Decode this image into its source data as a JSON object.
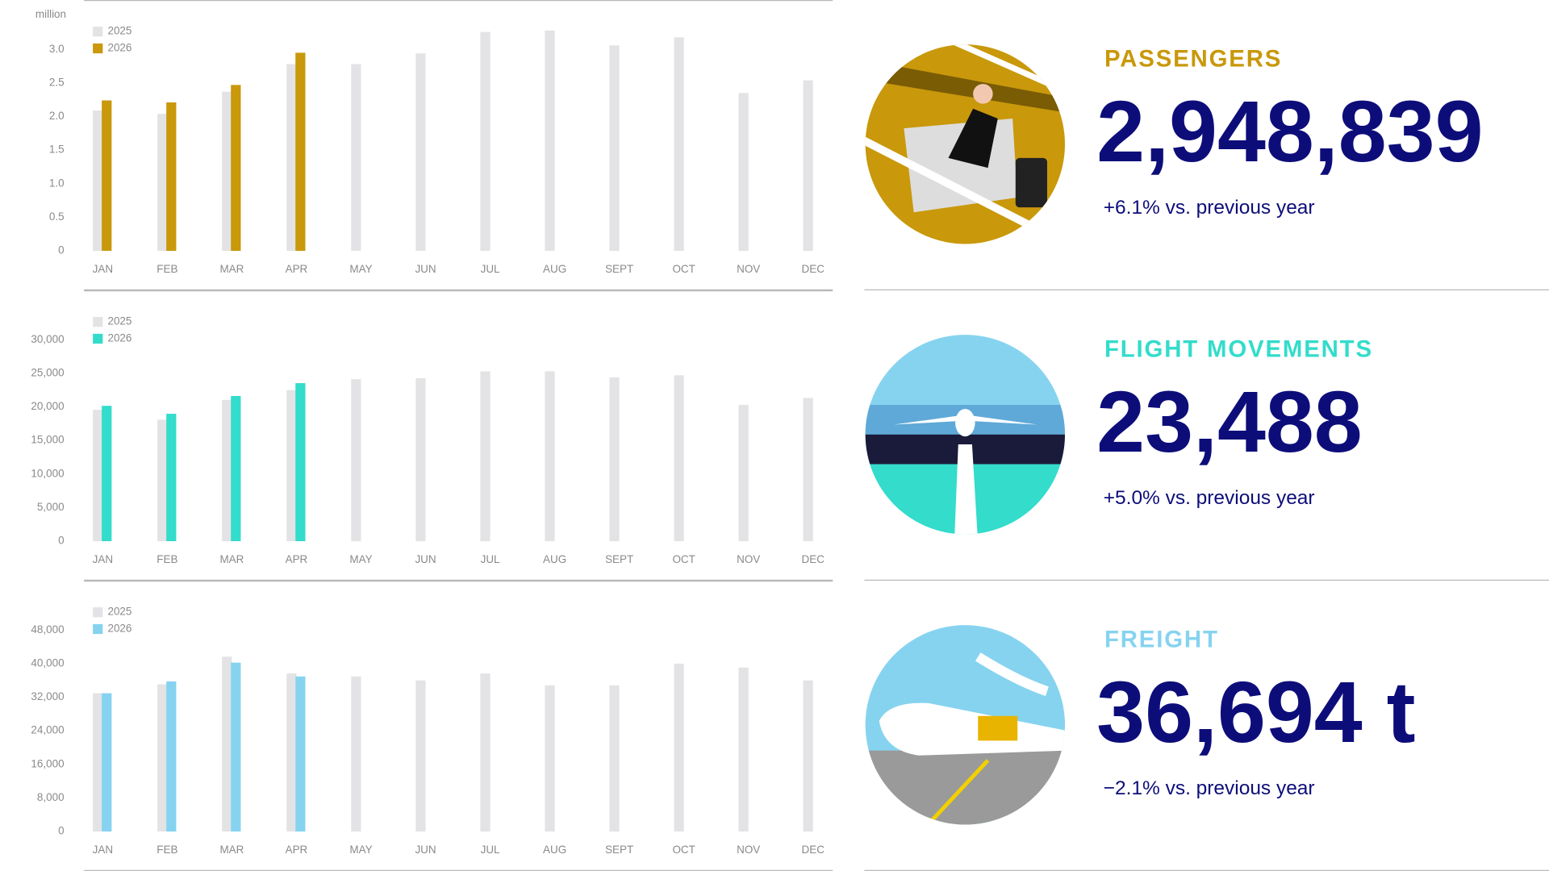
{
  "chart_data": [
    {
      "type": "bar",
      "ylabel": "million",
      "categories": [
        "JAN",
        "FEB",
        "MAR",
        "APR",
        "MAY",
        "JUN",
        "JUL",
        "AUG",
        "SEPT",
        "OCT",
        "NOV",
        "DEC"
      ],
      "series": [
        {
          "name": "2025",
          "color": "#e3e3e5",
          "values": [
            2.09,
            2.04,
            2.37,
            2.78,
            2.78,
            2.94,
            3.26,
            3.28,
            3.06,
            3.18,
            2.35,
            2.54
          ]
        },
        {
          "name": "2026",
          "color": "#c9980b",
          "values": [
            2.24,
            2.21,
            2.47,
            2.95,
            null,
            null,
            null,
            null,
            null,
            null,
            null,
            null
          ]
        }
      ],
      "ylim": [
        0,
        3.5
      ],
      "yticks": [
        0,
        0.5,
        {
          "value": 1,
          "label": "1.0"
        },
        1.5,
        {
          "value": 2,
          "label": "2.0"
        },
        2.5,
        {
          "value": 3,
          "label": "3.0"
        }
      ]
    },
    {
      "type": "bar",
      "categories": [
        "JAN",
        "FEB",
        "MAR",
        "APR",
        "MAY",
        "JUN",
        "JUL",
        "AUG",
        "SEPT",
        "OCT",
        "NOV",
        "DEC"
      ],
      "series": [
        {
          "name": "2025",
          "color": "#e3e3e5",
          "values": [
            19560,
            18090,
            21030,
            22500,
            24120,
            24260,
            25290,
            25290,
            24410,
            24710,
            20290,
            21320
          ]
        },
        {
          "name": "2026",
          "color": "#33dccb",
          "values": [
            20150,
            18970,
            21620,
            23530,
            null,
            null,
            null,
            null,
            null,
            null,
            null,
            null
          ]
        }
      ],
      "ylim": [
        0,
        35000
      ],
      "yticks": [
        0,
        {
          "value": 5000,
          "label": "5,000"
        },
        {
          "value": 10000,
          "label": "10,000"
        },
        {
          "value": 15000,
          "label": "15,000"
        },
        {
          "value": 20000,
          "label": "20,000"
        },
        {
          "value": 25000,
          "label": "25,000"
        },
        {
          "value": 30000,
          "label": "30,000"
        }
      ]
    },
    {
      "type": "bar",
      "categories": [
        "JAN",
        "FEB",
        "MAR",
        "APR",
        "MAY",
        "JUN",
        "JUL",
        "AUG",
        "SEPT",
        "OCT",
        "NOV",
        "DEC"
      ],
      "series": [
        {
          "name": "2025",
          "color": "#e3e3e5",
          "values": [
            32940,
            35060,
            41650,
            37650,
            36940,
            36000,
            37650,
            34820,
            34820,
            40000,
            39060,
            36000
          ]
        },
        {
          "name": "2026",
          "color": "#86d3f0",
          "values": [
            32940,
            35760,
            40240,
            36940,
            null,
            null,
            null,
            null,
            null,
            null,
            null,
            null
          ]
        }
      ],
      "ylim": [
        0,
        56000
      ],
      "yticks": [
        0,
        {
          "value": 8000,
          "label": "8,000"
        },
        {
          "value": 16000,
          "label": "16,000"
        },
        {
          "value": 24000,
          "label": "24,000"
        },
        {
          "value": 32000,
          "label": "32,000"
        },
        {
          "value": 40000,
          "label": "40,000"
        },
        {
          "value": 48000,
          "label": "48,000"
        }
      ]
    }
  ],
  "panels": [
    {
      "title": "PASSENGERS",
      "value": "2,948,839",
      "change": "+6.1% vs. previous year",
      "color": "#c9980b"
    },
    {
      "title": "FLIGHT MOVEMENTS",
      "value": "23,488",
      "change": "+5.0% vs. previous year",
      "color": "#33dccb"
    },
    {
      "title": "FREIGHT",
      "value": "36,694 t",
      "change": "−2.1% vs. previous year",
      "color": "#86d3f0"
    }
  ]
}
